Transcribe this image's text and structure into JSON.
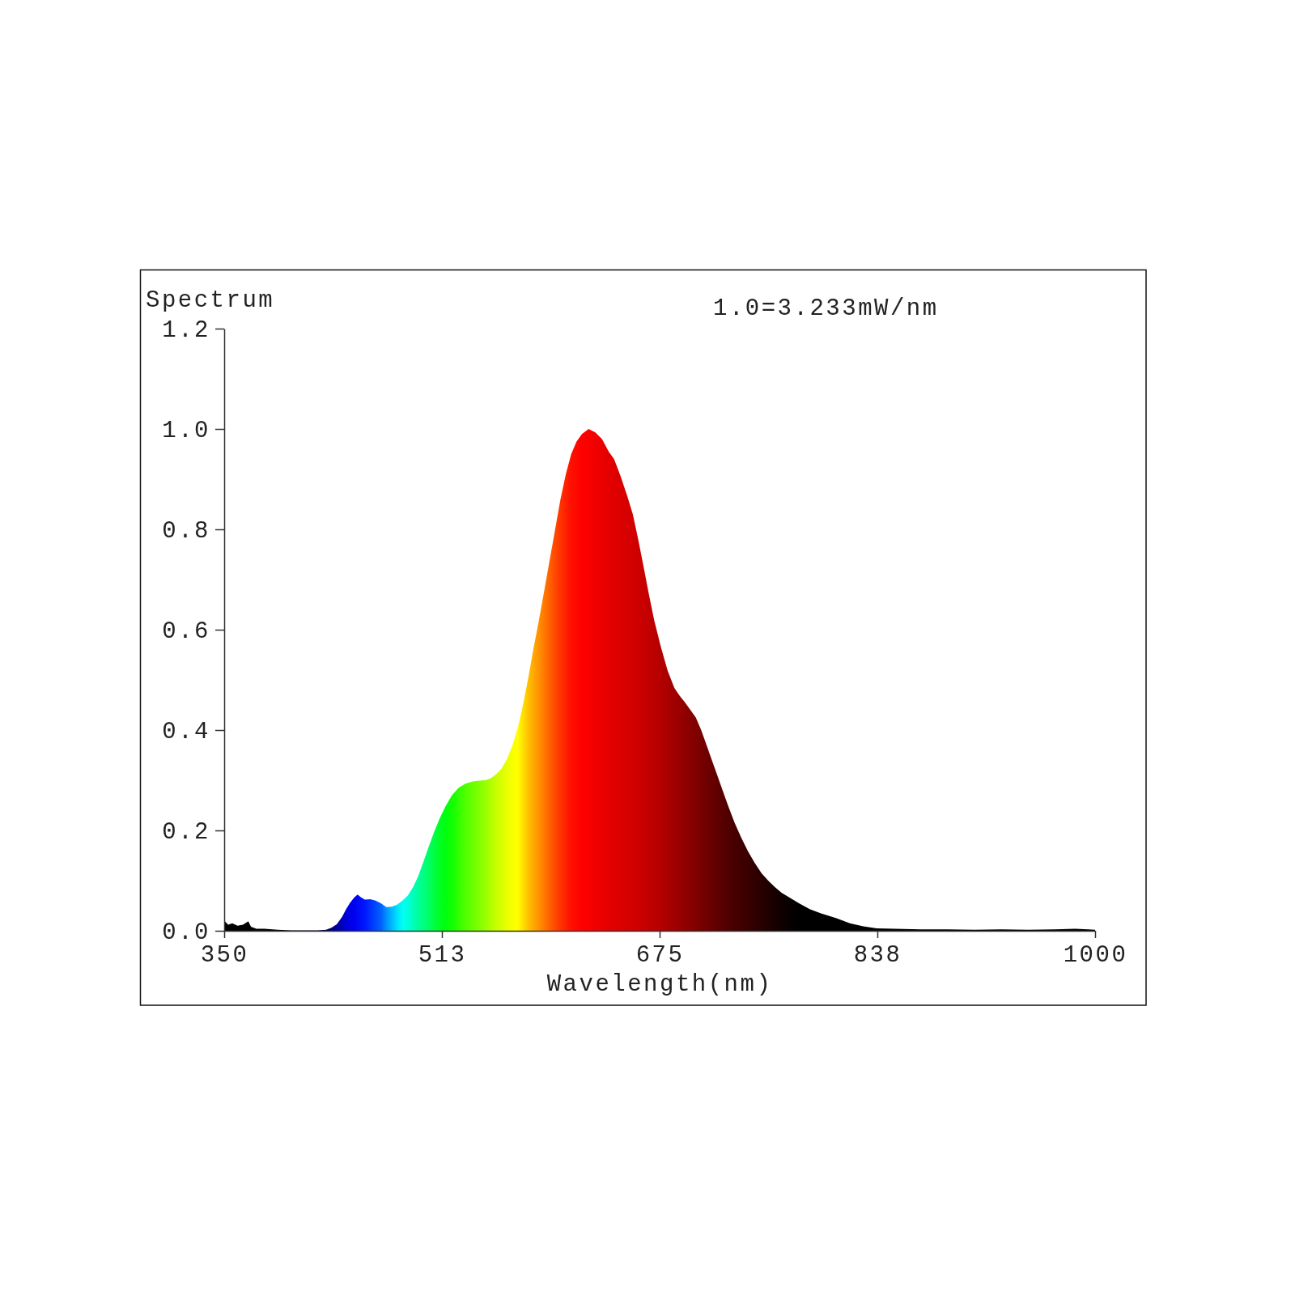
{
  "chart_data": {
    "type": "area",
    "xlabel": "Wavelength(nm)",
    "ylabel": "Spectrum",
    "annotations": [
      "1.0=3.233mW/nm"
    ],
    "xlim": [
      350,
      1000
    ],
    "xticks": [
      350,
      {
        "value": 512.5,
        "label": "513"
      },
      675,
      {
        "value": 837.5,
        "label": "838"
      },
      1000
    ],
    "ylim": [
      0,
      1.2
    ],
    "yticks": [
      {
        "value": 0,
        "label": "0.0"
      },
      0.2,
      0.4,
      0.6,
      0.8,
      {
        "value": 1,
        "label": "1.0"
      },
      1.2
    ],
    "x": [
      350,
      353,
      356,
      360,
      364,
      368,
      370,
      374,
      380,
      390,
      400,
      410,
      420,
      426,
      430,
      434,
      438,
      441,
      444,
      447,
      449.5,
      452,
      455,
      459,
      463,
      467,
      471,
      475,
      479,
      483,
      487,
      491,
      495,
      499,
      503,
      507,
      511,
      515,
      520,
      525,
      530,
      535,
      540,
      545,
      549,
      553,
      557,
      561,
      565,
      569,
      573,
      577,
      581,
      585,
      589,
      593,
      597,
      601,
      605,
      609,
      613,
      617,
      622,
      627,
      632,
      637,
      641,
      646,
      651,
      655,
      659,
      663,
      667,
      671,
      676,
      681,
      686,
      690,
      694,
      698,
      702,
      706,
      710,
      714,
      718,
      722,
      726,
      731,
      736,
      741,
      746,
      751,
      756,
      761,
      766,
      772,
      779,
      787,
      795,
      807,
      817,
      827,
      837,
      850,
      870,
      890,
      910,
      930,
      950,
      970,
      985,
      995,
      1000
    ],
    "values": [
      0.02,
      0.012,
      0.015,
      0.01,
      0.012,
      0.019,
      0.008,
      0.004,
      0.004,
      0.002,
      0.001,
      0.001,
      0.001,
      0.002,
      0.006,
      0.013,
      0.028,
      0.043,
      0.056,
      0.066,
      0.072,
      0.067,
      0.062,
      0.063,
      0.06,
      0.055,
      0.047,
      0.048,
      0.052,
      0.06,
      0.07,
      0.087,
      0.11,
      0.14,
      0.17,
      0.199,
      0.225,
      0.247,
      0.27,
      0.285,
      0.293,
      0.297,
      0.299,
      0.3,
      0.304,
      0.312,
      0.323,
      0.342,
      0.368,
      0.403,
      0.45,
      0.505,
      0.565,
      0.62,
      0.68,
      0.74,
      0.8,
      0.86,
      0.91,
      0.95,
      0.975,
      0.99,
      1.0,
      0.993,
      0.98,
      0.955,
      0.94,
      0.905,
      0.865,
      0.83,
      0.78,
      0.726,
      0.67,
      0.618,
      0.565,
      0.518,
      0.484,
      0.468,
      0.455,
      0.44,
      0.425,
      0.4,
      0.37,
      0.34,
      0.31,
      0.28,
      0.25,
      0.215,
      0.185,
      0.158,
      0.135,
      0.115,
      0.1,
      0.087,
      0.076,
      0.066,
      0.055,
      0.043,
      0.035,
      0.025,
      0.015,
      0.009,
      0.005,
      0.004,
      0.003,
      0.003,
      0.002,
      0.003,
      0.002,
      0.003,
      0.004,
      0.003,
      0.002
    ],
    "colors": [
      "#000000",
      "#000000",
      "#000000",
      "#000000",
      "#000000",
      "#000000",
      "#000000",
      "#000000",
      "#000000",
      "#000000",
      "#000010",
      "#000020",
      "#000030",
      "#000050",
      "#000080",
      "#0000a0",
      "#0000c0",
      "#0000d8",
      "#0000e8",
      "#0000f0",
      "#0008f4",
      "#0010f8",
      "#0018ff",
      "#0030ff",
      "#0048ff",
      "#0060ff",
      "#0090ff",
      "#00b8ff",
      "#00e0ff",
      "#00fff0",
      "#00ffe0",
      "#00ffb8",
      "#00ff98",
      "#00ff80",
      "#00ff60",
      "#00ff40",
      "#00ff20",
      "#00ff10",
      "#10ff00",
      "#30ff00",
      "#50ff00",
      "#68ff00",
      "#80ff00",
      "#98ff00",
      "#b0ff00",
      "#c8ff00",
      "#d8ff00",
      "#e8ff00",
      "#f8ff00",
      "#ffff00",
      "#ffe000",
      "#ffc000",
      "#ffa800",
      "#ff9000",
      "#ff7800",
      "#ff6000",
      "#ff4800",
      "#ff3400",
      "#ff2000",
      "#ff1000",
      "#ff0800",
      "#ff0000",
      "#fa0000",
      "#f00000",
      "#ea0000",
      "#e40000",
      "#e00000",
      "#dc0000",
      "#d60000",
      "#d20000",
      "#cc0000",
      "#c80000",
      "#c20000",
      "#bc0000",
      "#b40000",
      "#aa0000",
      "#a00000",
      "#980000",
      "#900000",
      "#880000",
      "#800000",
      "#780000",
      "#700000",
      "#680000",
      "#600000",
      "#580000",
      "#500000",
      "#480000",
      "#400000",
      "#380000",
      "#300000",
      "#280000",
      "#200000",
      "#180000",
      "#100000",
      "#080000",
      "#000000",
      "#000000",
      "#000000",
      "#000000",
      "#000000",
      "#000000",
      "#000000",
      "#000000",
      "#000000",
      "#000000",
      "#000000",
      "#000000",
      "#000000",
      "#000000",
      "#000000",
      "#000000",
      "#000000"
    ]
  }
}
